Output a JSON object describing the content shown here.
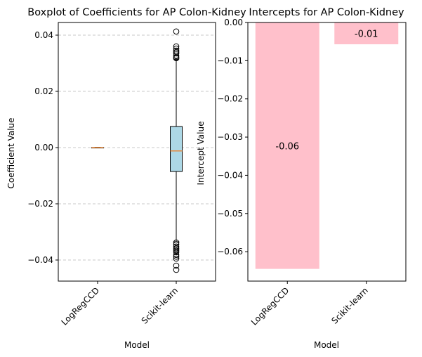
{
  "chart_data": [
    {
      "type": "box",
      "title": "Boxplot of Coefficients for AP Colon-Kidney",
      "xlabel": "Model",
      "ylabel": "Coefficient Value",
      "categories": [
        "LogRegCCD",
        "Scikit-learn"
      ],
      "ylim": [
        -0.0475,
        0.0445
      ],
      "yticks": [
        -0.04,
        -0.02,
        0.0,
        0.02,
        0.04
      ],
      "ytick_labels": [
        "−0.04",
        "−0.02",
        "0.00",
        "0.02",
        "0.04"
      ],
      "grid": "y-dashed",
      "box_color": "#add8e6",
      "median_color": "#e8883a",
      "boxes": [
        {
          "name": "LogRegCCD",
          "whisker_low": -0.0001,
          "q1": 0.0,
          "median": 0.0,
          "q3": 0.0,
          "whisker_high": 0.0001,
          "outliers": []
        },
        {
          "name": "Scikit-learn",
          "whisker_low": -0.0335,
          "q1": -0.0085,
          "median": -0.0012,
          "q3": 0.0075,
          "whisker_high": 0.0315,
          "outliers": [
            0.0413,
            0.036,
            0.0352,
            0.0345,
            0.034,
            0.0335,
            0.0327,
            0.0321,
            0.0318,
            -0.0338,
            -0.0345,
            -0.0352,
            -0.0358,
            -0.0362,
            -0.0367,
            -0.0372,
            -0.0382,
            -0.0388,
            -0.0395,
            -0.042,
            -0.0435
          ]
        }
      ]
    },
    {
      "type": "bar",
      "title": "Intercepts for AP Colon-Kidney",
      "xlabel": "Model",
      "ylabel": "Intercept Value",
      "categories": [
        "LogRegCCD",
        "Scikit-learn"
      ],
      "values": [
        -0.0645,
        -0.0057
      ],
      "data_labels": [
        "-0.06",
        "-0.01"
      ],
      "ylim": [
        -0.0677,
        0.0
      ],
      "yticks": [
        0.0,
        -0.01,
        -0.02,
        -0.03,
        -0.04,
        -0.05,
        -0.06
      ],
      "ytick_labels": [
        "0.00",
        "−0.01",
        "−0.02",
        "−0.03",
        "−0.04",
        "−0.05",
        "−0.06"
      ],
      "bar_color": "#ffc0cb",
      "grid": "off"
    }
  ]
}
